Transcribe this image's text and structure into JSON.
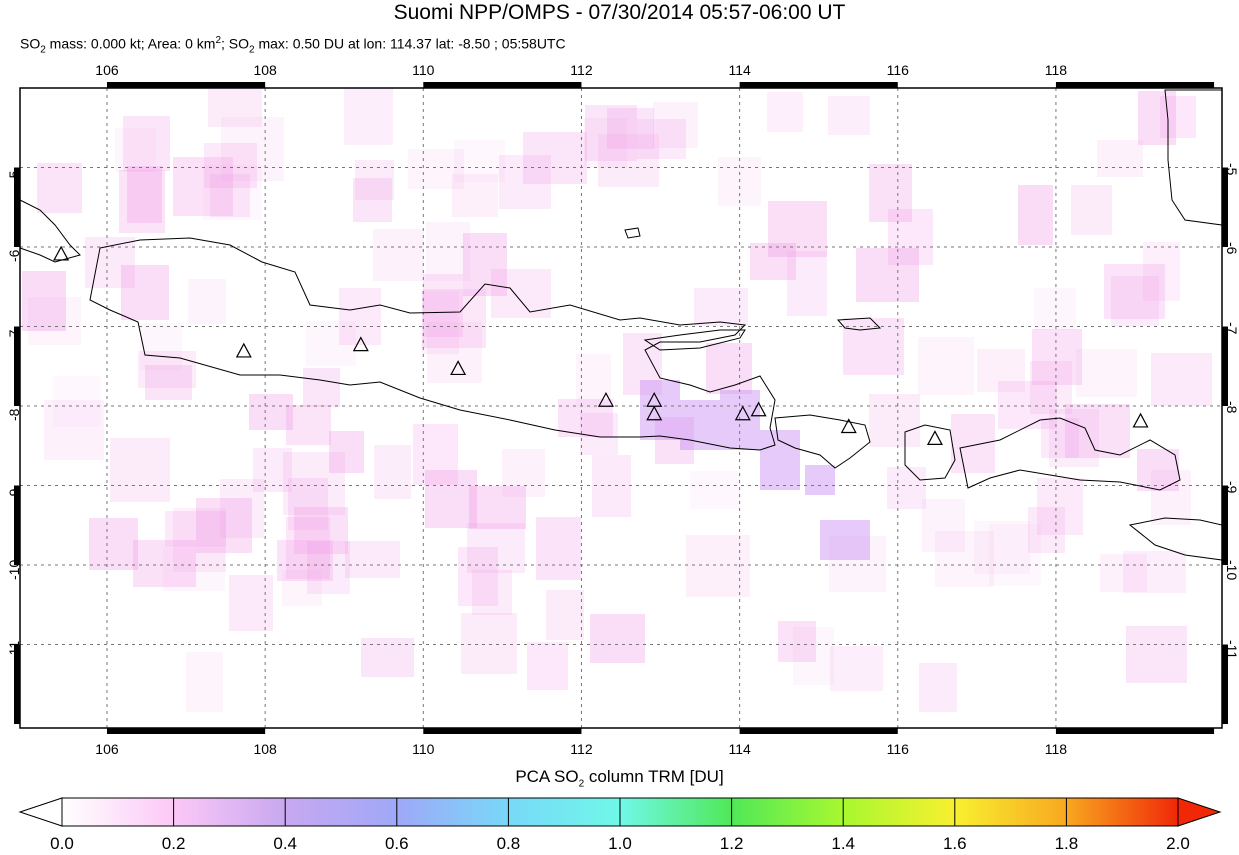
{
  "header": {
    "title": "Suomi NPP/OMPS - 07/30/2014 05:57-06:00 UT",
    "sub_so2": "SO",
    "sub_mass": " mass: 0.000 kt; Area: 0 km",
    "sub_sup": "2",
    "sub_mid": "; SO",
    "sub_rest": " max: 0.50 DU at lon: 114.37 lat: -8.50 ; 05:58UTC",
    "two": "2"
  },
  "map": {
    "lon_ticks": [
      "106",
      "108",
      "110",
      "112",
      "114",
      "116",
      "118"
    ],
    "lat_ticks": [
      "-5",
      "-6",
      "-7",
      "-8",
      "-9",
      "-10",
      "-11"
    ],
    "background": "#ffffff",
    "coast_color": "#000000",
    "volcano_marker": "triangle-outline",
    "volcanoes": [
      {
        "lon": 105.42,
        "lat": -6.1
      },
      {
        "lon": 107.73,
        "lat": -7.32
      },
      {
        "lon": 109.21,
        "lat": -7.24
      },
      {
        "lon": 110.44,
        "lat": -7.54
      },
      {
        "lon": 112.31,
        "lat": -7.94
      },
      {
        "lon": 112.92,
        "lat": -7.94
      },
      {
        "lon": 112.92,
        "lat": -8.11
      },
      {
        "lon": 114.04,
        "lat": -8.11
      },
      {
        "lon": 114.24,
        "lat": -8.06
      },
      {
        "lon": 115.38,
        "lat": -8.27
      },
      {
        "lon": 116.47,
        "lat": -8.42
      },
      {
        "lon": 119.07,
        "lat": -8.2
      }
    ]
  },
  "colorbar": {
    "label_pre": "PCA SO",
    "label_sub": "2",
    "label_post": " column TRM [DU]",
    "ticks": [
      "0.0",
      "0.2",
      "0.4",
      "0.6",
      "0.8",
      "1.0",
      "1.2",
      "1.4",
      "1.6",
      "1.8",
      "2.0"
    ],
    "range": [
      0.0,
      2.0
    ],
    "colors": [
      "#ffffff",
      "#fbc8f6",
      "#c8a8f0",
      "#9fa8f8",
      "#78d8f8",
      "#70f8e8",
      "#50e858",
      "#a8f830",
      "#f8f030",
      "#f8a820",
      "#f02808"
    ]
  }
}
